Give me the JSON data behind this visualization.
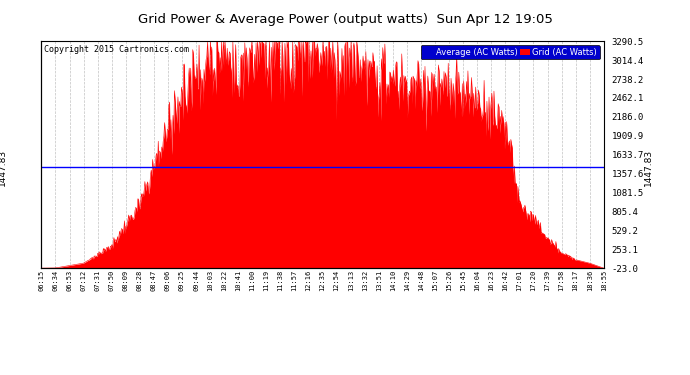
{
  "title": "Grid Power & Average Power (output watts)  Sun Apr 12 19:05",
  "copyright": "Copyright 2015 Cartronics.com",
  "average_value": 1447.83,
  "y_min": -23.0,
  "y_max": 3290.5,
  "yticks_right": [
    3290.5,
    3014.4,
    2738.2,
    2462.1,
    2186.0,
    1909.9,
    1633.7,
    1357.6,
    1081.5,
    805.4,
    529.2,
    253.1,
    -23.0
  ],
  "fill_color": "#FF0000",
  "average_line_color": "#0000FF",
  "bg_color": "#FFFFFF",
  "grid_color": "#BBBBBB",
  "legend_avg_bg": "#0000CD",
  "legend_grid_bg": "#FF0000",
  "xtick_labels": [
    "06:15",
    "06:34",
    "06:53",
    "07:12",
    "07:31",
    "07:50",
    "08:09",
    "08:28",
    "08:47",
    "09:06",
    "09:25",
    "09:44",
    "10:03",
    "10:22",
    "10:41",
    "11:00",
    "11:19",
    "11:38",
    "11:57",
    "12:16",
    "12:35",
    "12:54",
    "13:13",
    "13:32",
    "13:51",
    "14:10",
    "14:29",
    "14:48",
    "15:07",
    "15:26",
    "15:45",
    "16:04",
    "16:23",
    "16:42",
    "17:01",
    "17:20",
    "17:39",
    "17:58",
    "18:17",
    "18:36",
    "18:55"
  ]
}
